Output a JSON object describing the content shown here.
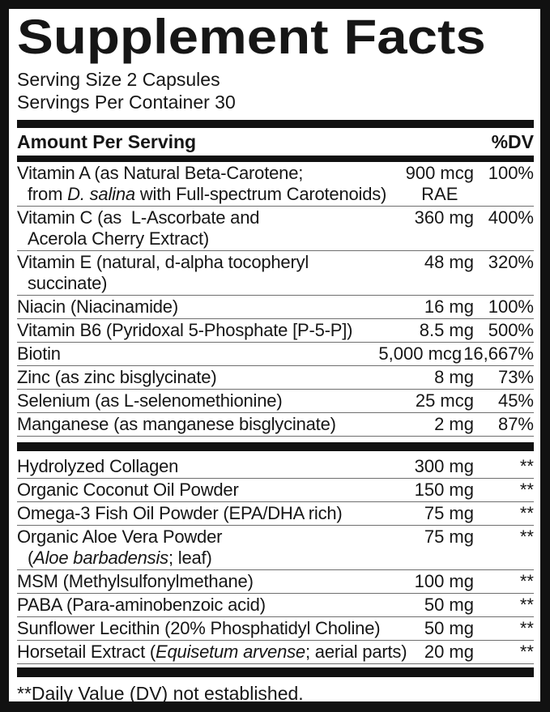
{
  "label": {
    "title": "Supplement Facts",
    "serving_size": "Serving Size 2 Capsules",
    "servings_per_container": "Servings Per Container 30",
    "header": {
      "amount_per_serving": "Amount Per Serving",
      "dv": "%DV"
    },
    "colors": {
      "text": "#161616",
      "bar": "#111111",
      "hairline": "#6f6f6f",
      "background": "#ffffff"
    },
    "sections": [
      {
        "rows": [
          {
            "name": [
              {
                "t": "Vitamin A (as Natural Beta-Carotene;"
              }
            ],
            "name2": [
              {
                "t": "from "
              },
              {
                "t": "D. salina",
                "i": true
              },
              {
                "t": " with Full-spectrum Carotenoids)"
              }
            ],
            "amount": "900 mcg",
            "amount2": "RAE",
            "dv": "100%"
          },
          {
            "name": [
              {
                "t": "Vitamin C (as  L-Ascorbate and"
              }
            ],
            "name2": [
              {
                "t": "Acerola Cherry Extract)"
              }
            ],
            "amount": "360 mg",
            "dv": "400%"
          },
          {
            "name": [
              {
                "t": "Vitamin E (natural, d-alpha tocopheryl"
              }
            ],
            "name2": [
              {
                "t": "succinate)"
              }
            ],
            "amount": "48 mg",
            "dv": "320%"
          },
          {
            "name": [
              {
                "t": "Niacin (Niacinamide)"
              }
            ],
            "amount": "16 mg",
            "dv": "100%"
          },
          {
            "name": [
              {
                "t": "Vitamin B6 (Pyridoxal 5-Phosphate [P-5-P])"
              }
            ],
            "amount": "8.5 mg",
            "dv": "500%"
          },
          {
            "name": [
              {
                "t": "Biotin"
              }
            ],
            "amount": "5,000 mcg",
            "dv": "16,667%"
          },
          {
            "name": [
              {
                "t": "Zinc (as zinc bisglycinate)"
              }
            ],
            "amount": "8 mg",
            "dv": "73%"
          },
          {
            "name": [
              {
                "t": "Selenium (as L-selenomethionine)"
              }
            ],
            "amount": "25 mcg",
            "dv": "45%"
          },
          {
            "name": [
              {
                "t": "Manganese (as manganese bisglycinate)"
              }
            ],
            "amount": "2 mg",
            "dv": "87%"
          }
        ]
      },
      {
        "rows": [
          {
            "name": [
              {
                "t": "Hydrolyzed Collagen"
              }
            ],
            "amount": "300 mg",
            "dv": "**"
          },
          {
            "name": [
              {
                "t": "Organic Coconut Oil Powder"
              }
            ],
            "amount": "150 mg",
            "dv": "**"
          },
          {
            "name": [
              {
                "t": "Omega-3 Fish Oil Powder (EPA/DHA rich)"
              }
            ],
            "amount": "75 mg",
            "dv": "**"
          },
          {
            "name": [
              {
                "t": "Organic Aloe Vera Powder"
              }
            ],
            "name2": [
              {
                "t": "("
              },
              {
                "t": "Aloe barbadensis",
                "i": true
              },
              {
                "t": "; leaf)"
              }
            ],
            "amount": "75 mg",
            "dv": "**"
          },
          {
            "name": [
              {
                "t": "MSM (Methylsulfonylmethane)"
              }
            ],
            "amount": "100 mg",
            "dv": "**"
          },
          {
            "name": [
              {
                "t": "PABA (Para-aminobenzoic acid)"
              }
            ],
            "amount": "50 mg",
            "dv": "**"
          },
          {
            "name": [
              {
                "t": "Sunflower Lecithin (20% Phosphatidyl Choline)"
              }
            ],
            "amount": "50 mg",
            "dv": "**"
          },
          {
            "name": [
              {
                "t": "Horsetail Extract ("
              },
              {
                "t": "Equisetum arvense",
                "i": true
              },
              {
                "t": "; aerial parts)"
              }
            ],
            "amount": "20 mg",
            "dv": "**"
          }
        ]
      }
    ],
    "footnote": "**Daily Value (DV) not established."
  }
}
